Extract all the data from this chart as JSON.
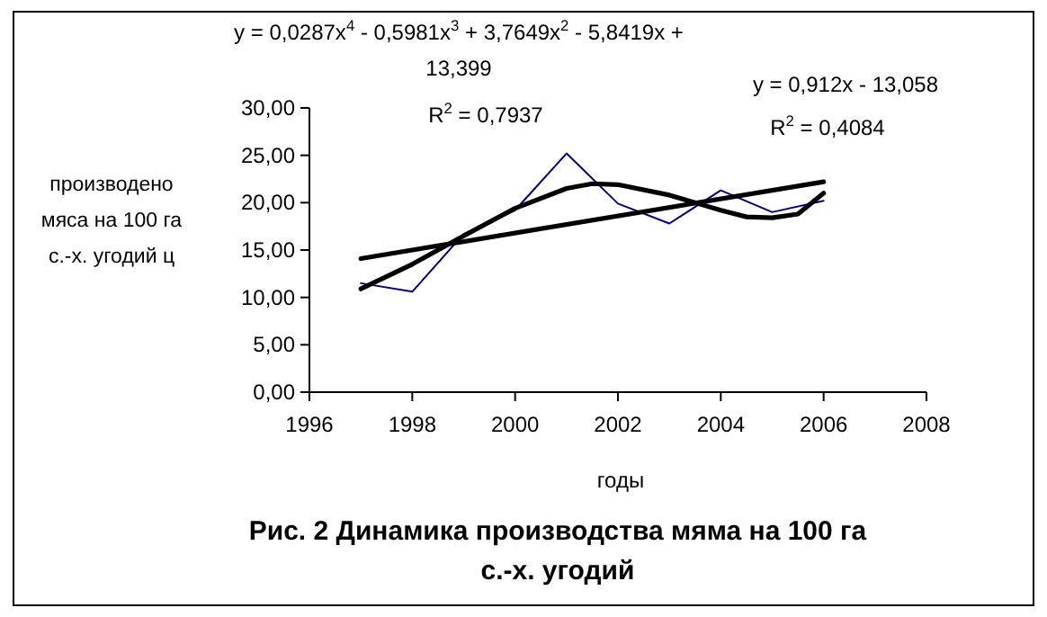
{
  "chart_data": {
    "type": "line",
    "title": "Рис. 2 Динамика производства мяма на 100 га с.-х. угодий",
    "xlabel": "годы",
    "ylabel": "производено мяса на 100 га с.-х. угодий ц",
    "x": [
      1997,
      1998,
      1999,
      2000,
      2001,
      2002,
      2003,
      2004,
      2005,
      2006
    ],
    "series": [
      {
        "color": "#000080",
        "values": [
          11.5,
          10.6,
          16.7,
          19.2,
          25.2,
          19.9,
          17.8,
          21.3,
          19.0,
          20.2
        ]
      },
      {
        "type": "line",
        "color": "#000000",
        "x": [
          1997,
          1998,
          1999,
          2000,
          2001,
          2001.5,
          2002,
          2003,
          2004,
          2004.5,
          2005,
          2005.5,
          2006
        ],
        "values": [
          10.9,
          13.5,
          16.5,
          19.4,
          21.5,
          22.0,
          21.9,
          20.8,
          19.2,
          18.5,
          18.4,
          18.8,
          21.0
        ]
      },
      {
        "type": "line",
        "color": "#000000",
        "x": [
          1997,
          2006
        ],
        "values": [
          14.1,
          22.2
        ]
      }
    ],
    "xlim": [
      1996,
      2008
    ],
    "xticks": [
      1996,
      1998,
      2000,
      2002,
      2004,
      2006,
      2008
    ],
    "ylim": [
      0,
      30
    ],
    "yticks": [
      {
        "value": 0,
        "label": "0,00"
      },
      {
        "value": 5,
        "label": "5,00"
      },
      {
        "value": 10,
        "label": "10,00"
      },
      {
        "value": 15,
        "label": "15,00"
      },
      {
        "value": 20,
        "label": "20,00"
      },
      {
        "value": 25,
        "label": "25,00"
      },
      {
        "value": 30,
        "label": "30,00"
      }
    ],
    "annotations": [
      "y = 0,0287x$^{4}$ - 0,5981x$^{3}$ + 3,7649x$^{2}$ - 5,8419x + 13,399",
      "R$^{2}$ = 0,7937",
      "y = 0,912x - 13,058",
      "R$^{2}$ = 0,4084"
    ],
    "grid": false
  }
}
